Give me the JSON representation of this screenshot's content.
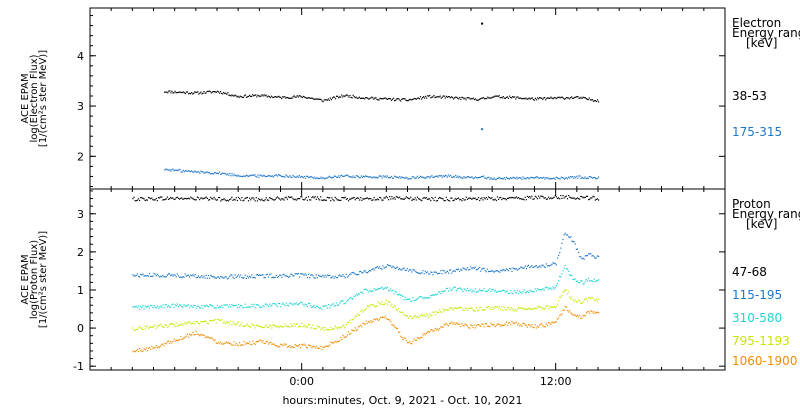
{
  "chart_data": [
    {
      "type": "scatter",
      "panel": "electron",
      "ylabel_lines": [
        "ACE EPAM",
        "log(Electron Flux)",
        "[1/(cm²s ster MeV)]"
      ],
      "ylim": [
        1.35,
        4.95
      ],
      "yticks": [
        2,
        3,
        4
      ],
      "legend_title_lines": [
        "Electron",
        "Energy ranges",
        "[keV]"
      ],
      "series": [
        {
          "name": "38-53",
          "color": "#000000",
          "x": [
            -6.5,
            -5,
            -4,
            -3,
            -2,
            -1,
            0,
            1,
            2,
            3,
            4,
            5,
            6,
            7,
            8,
            8.5,
            9,
            10,
            11,
            12,
            13,
            14
          ],
          "y": [
            3.3,
            3.27,
            3.3,
            3.2,
            3.22,
            3.18,
            3.2,
            3.12,
            3.22,
            3.17,
            3.15,
            3.13,
            3.2,
            3.18,
            3.15,
            3.15,
            3.2,
            3.18,
            3.15,
            3.17,
            3.18,
            3.12
          ],
          "outliers": [
            [
              8.5,
              4.65
            ]
          ]
        },
        {
          "name": "175-315",
          "color": "#1f77c8",
          "x": [
            -6.5,
            -5,
            -4,
            -3,
            -2,
            -1,
            0,
            1,
            2,
            3,
            4,
            5,
            6,
            7,
            8,
            8.5,
            9,
            10,
            11,
            12,
            13,
            14
          ],
          "y": [
            1.75,
            1.7,
            1.68,
            1.63,
            1.62,
            1.63,
            1.6,
            1.58,
            1.62,
            1.6,
            1.6,
            1.58,
            1.6,
            1.62,
            1.58,
            1.6,
            1.57,
            1.58,
            1.58,
            1.57,
            1.6,
            1.58
          ],
          "outliers": [
            [
              8.5,
              2.55
            ]
          ]
        }
      ]
    },
    {
      "type": "scatter",
      "panel": "proton",
      "ylabel_lines": [
        "ACE EPAM",
        "log(Proton Flux)",
        "[1/(cm²s ster MeV)]"
      ],
      "ylim": [
        -1.1,
        3.65
      ],
      "yticks": [
        -1,
        0,
        1,
        2,
        3
      ],
      "legend_title_lines": [
        "Proton",
        "Energy ranges",
        "[keV]"
      ],
      "series": [
        {
          "name": "47-68",
          "color": "#000000",
          "x": [
            -8,
            -6,
            -4,
            -2,
            0,
            2,
            4,
            6,
            8,
            10,
            12,
            13,
            14
          ],
          "y": [
            3.4,
            3.42,
            3.4,
            3.4,
            3.42,
            3.4,
            3.42,
            3.4,
            3.4,
            3.42,
            3.45,
            3.45,
            3.42
          ]
        },
        {
          "name": "115-195",
          "color": "#1f77c8",
          "x": [
            -8,
            -6,
            -4,
            -2,
            0,
            1,
            2,
            3,
            4,
            5,
            6,
            7,
            8,
            9,
            10,
            11,
            11.5,
            12,
            12.4,
            12.8,
            13.2,
            13.6,
            14
          ],
          "y": [
            1.4,
            1.4,
            1.35,
            1.38,
            1.4,
            1.35,
            1.38,
            1.5,
            1.65,
            1.55,
            1.45,
            1.5,
            1.6,
            1.5,
            1.55,
            1.65,
            1.65,
            1.7,
            2.55,
            2.3,
            1.8,
            1.95,
            1.85
          ]
        },
        {
          "name": "310-580",
          "color": "#22d3d3",
          "x": [
            -8,
            -6,
            -4,
            -2,
            0,
            1,
            2,
            3,
            4,
            5,
            6,
            7,
            8,
            9,
            10,
            11,
            11.5,
            12,
            12.4,
            12.8,
            13.2,
            13.6,
            14
          ],
          "y": [
            0.55,
            0.6,
            0.58,
            0.6,
            0.65,
            0.55,
            0.7,
            1.0,
            1.05,
            0.75,
            0.85,
            1.05,
            1.0,
            1.0,
            0.95,
            1.0,
            1.05,
            1.1,
            1.65,
            1.3,
            1.2,
            1.3,
            1.25
          ]
        },
        {
          "name": "795-1193",
          "color": "#c8e600",
          "x": [
            -8,
            -6,
            -4,
            -2,
            0,
            1,
            2,
            3,
            4,
            5,
            6,
            7,
            8,
            9,
            10,
            11,
            11.5,
            12,
            12.4,
            12.8,
            13.2,
            13.6,
            14
          ],
          "y": [
            0.0,
            0.1,
            0.2,
            0.05,
            0.1,
            0.0,
            0.05,
            0.55,
            0.7,
            0.3,
            0.35,
            0.55,
            0.5,
            0.55,
            0.5,
            0.55,
            0.55,
            0.6,
            1.05,
            0.75,
            0.7,
            0.8,
            0.75
          ]
        },
        {
          "name": "1060-1900",
          "color": "#f08c00",
          "x": [
            -8,
            -7,
            -6,
            -5,
            -4,
            -3,
            -2,
            -1,
            0,
            1,
            2,
            3,
            4,
            5,
            6,
            7,
            8,
            9,
            10,
            11,
            11.5,
            12,
            12.4,
            12.8,
            13.2,
            13.6,
            14
          ],
          "y": [
            -0.6,
            -0.5,
            -0.3,
            -0.1,
            -0.35,
            -0.4,
            -0.35,
            -0.45,
            -0.45,
            -0.5,
            -0.2,
            0.15,
            0.3,
            -0.4,
            -0.1,
            0.15,
            0.05,
            0.1,
            0.15,
            0.05,
            0.1,
            0.15,
            0.55,
            0.35,
            0.3,
            0.45,
            0.4
          ]
        }
      ]
    }
  ],
  "x_axis": {
    "xlim": [
      -10,
      20
    ],
    "ticks": [
      {
        "value": 0,
        "label": "0:00"
      },
      {
        "value": 12,
        "label": "12:00"
      }
    ],
    "minor_step": 1,
    "label": "hours:minutes, Oct.  9, 2021 - Oct. 10, 2021"
  }
}
